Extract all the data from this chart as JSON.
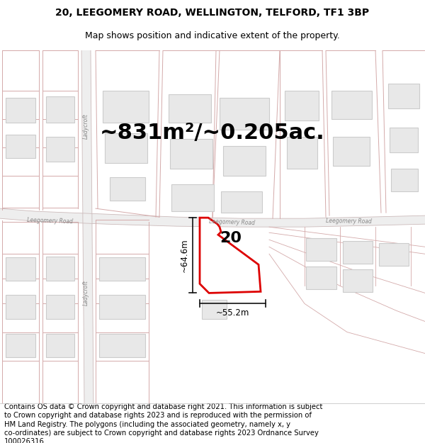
{
  "title_line1": "20, LEEGOMERY ROAD, WELLINGTON, TELFORD, TF1 3BP",
  "title_line2": "Map shows position and indicative extent of the property.",
  "area_text": "~831m²/~0.205ac.",
  "property_number": "20",
  "dim_vertical": "~64.6m",
  "dim_horizontal": "~55.2m",
  "footer_lines": [
    "Contains OS data © Crown copyright and database right 2021. This information is subject",
    "to Crown copyright and database rights 2023 and is reproduced with the permission of",
    "HM Land Registry. The polygons (including the associated geometry, namely x, y",
    "co-ordinates) are subject to Crown copyright and database rights 2023 Ordnance Survey",
    "100026316."
  ],
  "map_bg": "#ffffff",
  "road_fill": "#e8d8d8",
  "road_line": "#d4aaaa",
  "building_fill": "#e8e8e8",
  "building_edge": "#cccccc",
  "highlight": "#dd0000",
  "dim_line": "#111111",
  "label_road": "#888888",
  "title_fs": 10,
  "subtitle_fs": 9,
  "area_fs": 22,
  "footer_fs": 7.2,
  "num_fs": 16
}
